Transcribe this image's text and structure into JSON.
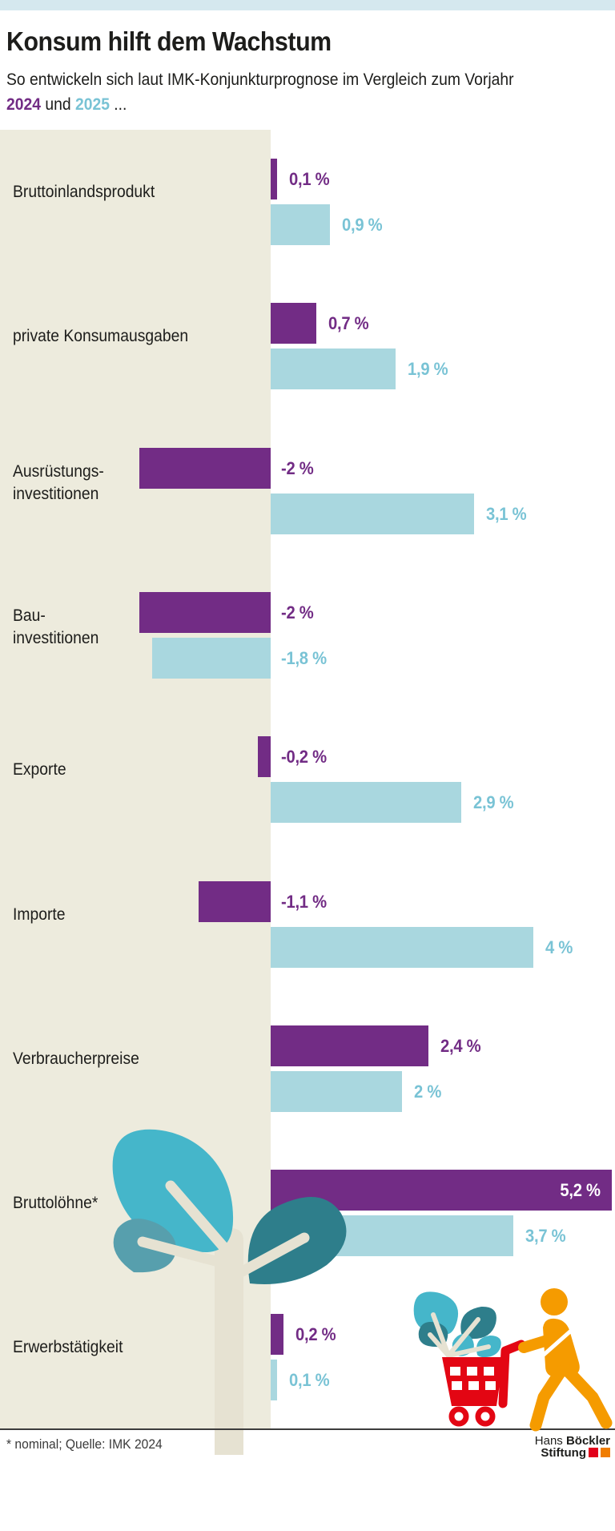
{
  "header": {
    "title": "Konsum hilft dem Wachstum",
    "subtitle_line1": "So entwickeln sich laut IMK-Konjunkturprognose im Vergleich zum Vorjahr",
    "subtitle_year1": "2024",
    "subtitle_connector": " und ",
    "subtitle_year2": "2025",
    "subtitle_suffix": " ..."
  },
  "footer": {
    "footnote": "* nominal; Quelle: IMK 2024",
    "logo_line1_regular": "Hans ",
    "logo_line1_bold": "Böckler",
    "logo_line2_bold": "Stiftung"
  },
  "colors": {
    "purple": "#722c85",
    "blue_bar": "#a9d7df",
    "blue_label": "#79c3d5",
    "beige_panel": "#edebdd",
    "top_strip": "#d5e8ef",
    "trunk_cream": "#e6e2d2",
    "leaf_turquoise": "#45b6ca",
    "leaf_teal": "#2e7e8b",
    "leaf_gray_teal": "#579fad",
    "cart_red": "#e30613",
    "person_orange": "#f59b00",
    "logo_red": "#e2001a",
    "logo_orange": "#f07d00"
  },
  "chart_data": {
    "type": "bar",
    "orientation": "horizontal",
    "unit": "%",
    "title": "Konsum hilft dem Wachstum",
    "subtitle": "So entwickeln sich laut IMK-Konjunkturprognose im Vergleich zum Vorjahr 2024 und 2025 ...",
    "grid": false,
    "legend": "inline-colored-years-in-subtitle",
    "categories": [
      [
        "Bruttoinlandsprodukt"
      ],
      [
        "private Konsumausgaben"
      ],
      [
        "Ausrüstungs-",
        "investitionen"
      ],
      [
        "Bau-",
        "investitionen"
      ],
      [
        "Exporte"
      ],
      [
        "Importe"
      ],
      [
        "Verbraucherpreise"
      ],
      [
        "Bruttolöhne*"
      ],
      [
        "Erwerbstätigkeit"
      ]
    ],
    "series": [
      {
        "name": "2024",
        "color": "#722c85",
        "values": [
          0.1,
          0.7,
          -2,
          -2,
          -0.2,
          -1.1,
          2.4,
          5.2,
          0.2
        ],
        "labels": [
          "0,1 %",
          "0,7 %",
          "-2 %",
          "-2 %",
          "-0,2 %",
          "-1,1 %",
          "2,4 %",
          "5,2 %",
          "0,2 %"
        ]
      },
      {
        "name": "2025",
        "color": "#a9d7df",
        "values": [
          0.9,
          1.9,
          3.1,
          -1.8,
          2.9,
          4,
          2,
          3.7,
          0.1
        ],
        "labels": [
          "0,9 %",
          "1,9 %",
          "3,1 %",
          "-1,8 %",
          "2,9 %",
          "4 %",
          "2 %",
          "3,7 %",
          "0,1 %"
        ]
      }
    ],
    "xlim": [
      -2.5,
      5.3
    ]
  }
}
